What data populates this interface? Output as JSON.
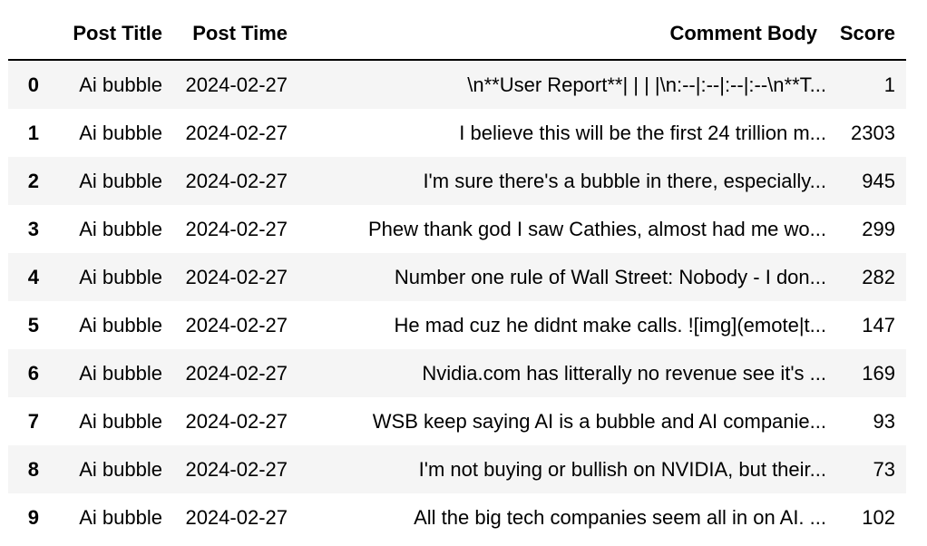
{
  "table": {
    "columns": {
      "index": "",
      "post_title": "Post Title",
      "post_time": "Post Time",
      "comment_body": "Comment Body",
      "score": "Score"
    },
    "rows": [
      {
        "index": "0",
        "post_title": "Ai bubble",
        "post_time": "2024-02-27",
        "comment_body": "\\n**User Report**| | | |\\n:--|:--|:--|:--\\n**T...",
        "score": "1"
      },
      {
        "index": "1",
        "post_title": "Ai bubble",
        "post_time": "2024-02-27",
        "comment_body": "I believe this will be the first 24 trillion m...",
        "score": "2303"
      },
      {
        "index": "2",
        "post_title": "Ai bubble",
        "post_time": "2024-02-27",
        "comment_body": "I'm sure there's a bubble in there, especially...",
        "score": "945"
      },
      {
        "index": "3",
        "post_title": "Ai bubble",
        "post_time": "2024-02-27",
        "comment_body": "Phew thank god I saw Cathies, almost had me wo...",
        "score": "299"
      },
      {
        "index": "4",
        "post_title": "Ai bubble",
        "post_time": "2024-02-27",
        "comment_body": "Number one rule of Wall Street: Nobody - I don...",
        "score": "282"
      },
      {
        "index": "5",
        "post_title": "Ai bubble",
        "post_time": "2024-02-27",
        "comment_body": "He mad cuz he didnt make calls. ![img](emote|t...",
        "score": "147"
      },
      {
        "index": "6",
        "post_title": "Ai bubble",
        "post_time": "2024-02-27",
        "comment_body": "Nvidia.com has litterally no revenue see it's ...",
        "score": "169"
      },
      {
        "index": "7",
        "post_title": "Ai bubble",
        "post_time": "2024-02-27",
        "comment_body": "WSB keep saying AI is a bubble and AI companie...",
        "score": "93"
      },
      {
        "index": "8",
        "post_title": "Ai bubble",
        "post_time": "2024-02-27",
        "comment_body": "I'm not buying or bullish on NVIDIA, but their...",
        "score": "73"
      },
      {
        "index": "9",
        "post_title": "Ai bubble",
        "post_time": "2024-02-27",
        "comment_body": "All the big tech companies seem all in on AI. ...",
        "score": "102"
      }
    ]
  }
}
